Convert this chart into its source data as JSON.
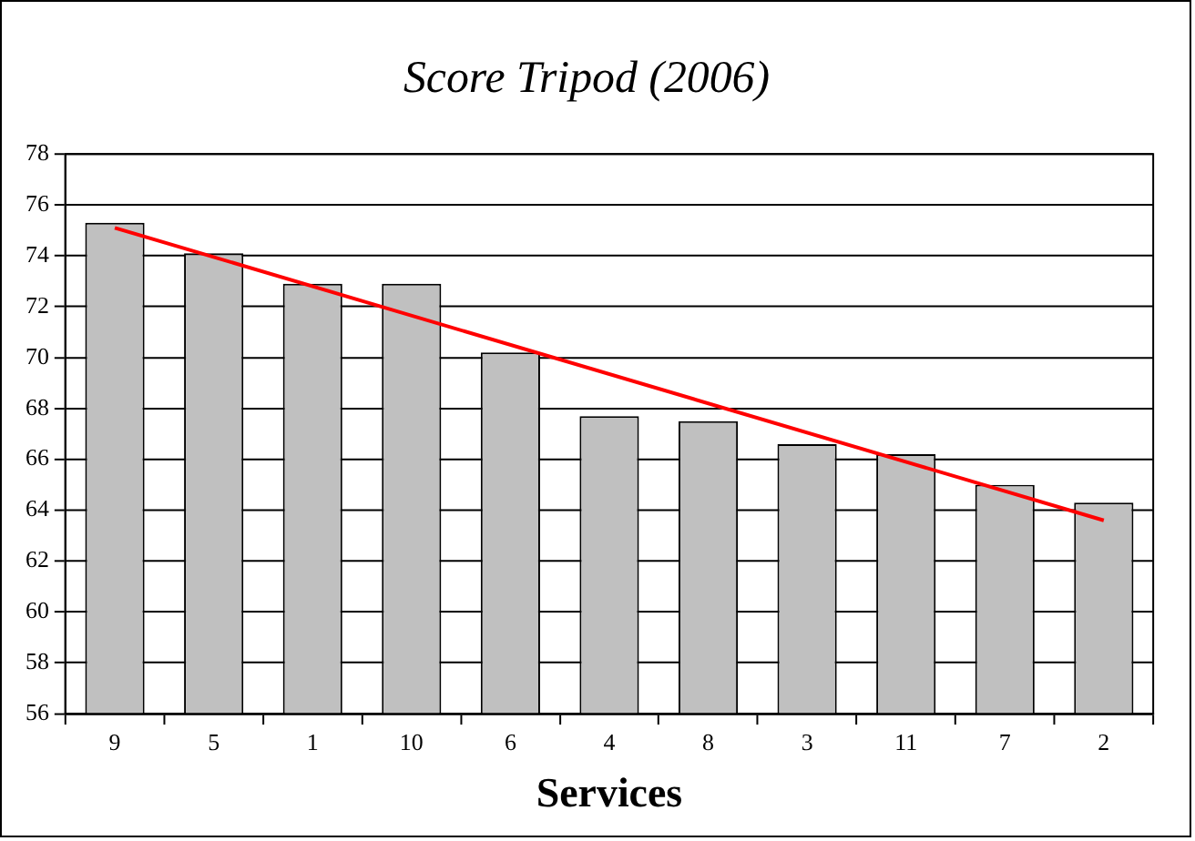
{
  "chart_data": {
    "type": "bar",
    "title": "Score Tripod (2006)",
    "xlabel": "Services",
    "categories": [
      "9",
      "5",
      "1",
      "10",
      "6",
      "4",
      "8",
      "3",
      "11",
      "7",
      "2"
    ],
    "series": [
      {
        "color": "#c0c0c0",
        "values": [
          75.3,
          74.1,
          72.9,
          72.9,
          70.2,
          67.7,
          67.5,
          66.6,
          66.2,
          65.0,
          64.3
        ]
      },
      {
        "type": "line",
        "color": "#ff0000",
        "x": [
          "9",
          "2"
        ],
        "values": [
          75.1,
          63.6
        ]
      }
    ],
    "ylim": [
      56,
      78
    ],
    "yticks": [
      56,
      58,
      60,
      62,
      64,
      66,
      68,
      70,
      72,
      74,
      76,
      78
    ],
    "grid": "y",
    "legend": false,
    "marker": "none"
  }
}
